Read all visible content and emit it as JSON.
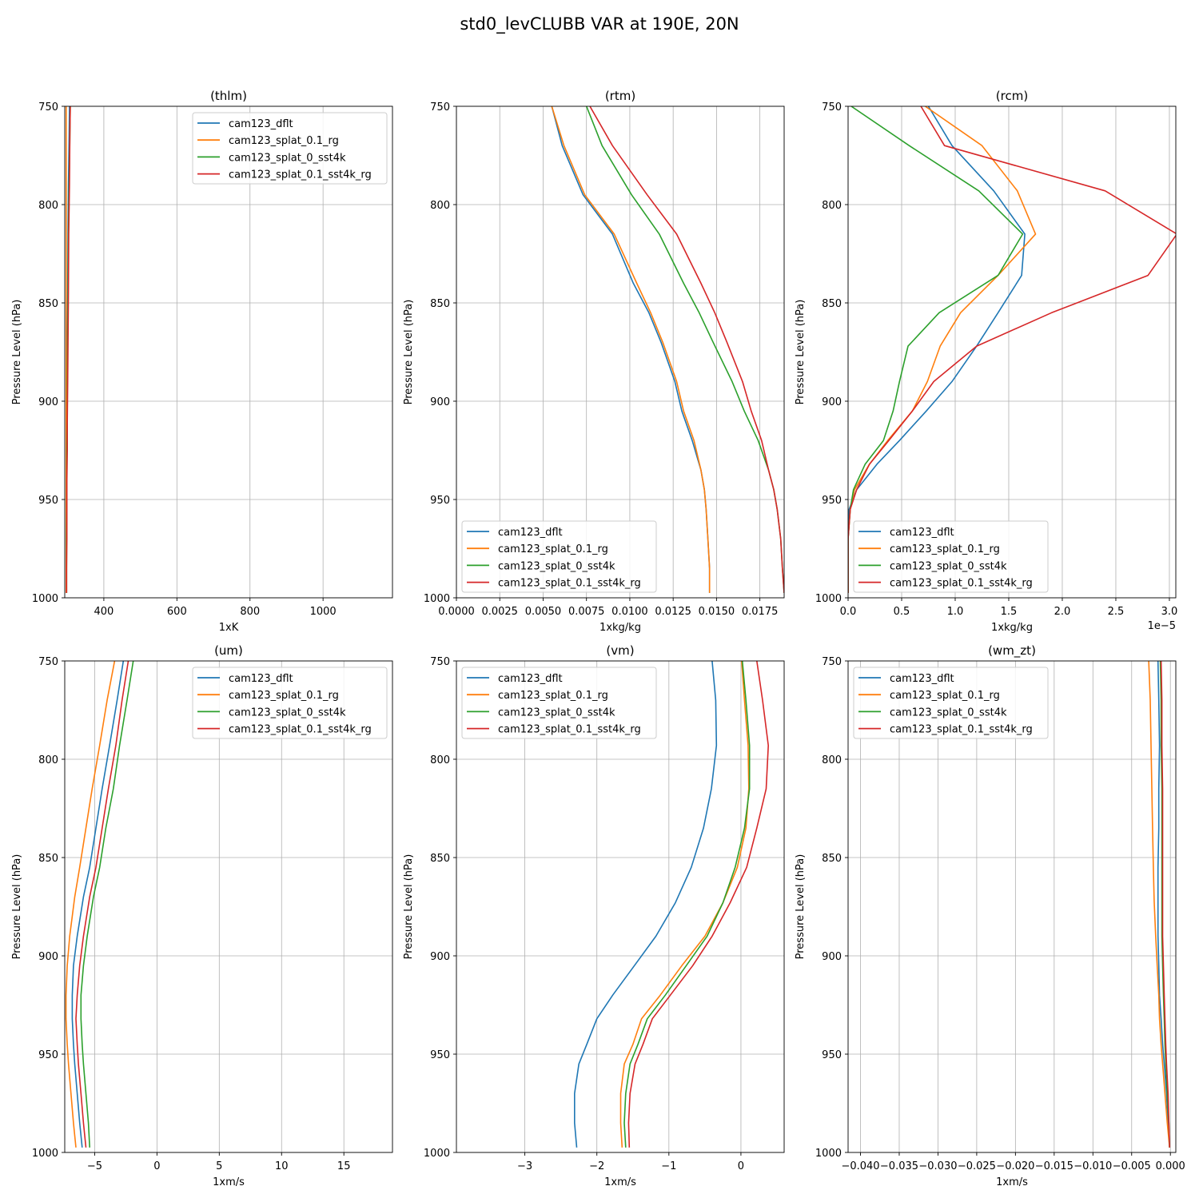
{
  "figure": {
    "title": "std0_levCLUBB VAR at 190E, 20N",
    "legend_entries": [
      "cam123_dflt",
      "cam123_splat_0.1_rg",
      "cam123_splat_0_sst4k",
      "cam123_splat_0.1_sst4k_rg"
    ],
    "colors": {
      "cam123_dflt": "#1f77b4",
      "cam123_splat_0.1_rg": "#ff7f0e",
      "cam123_splat_0_sst4k": "#2ca02c",
      "cam123_splat_0.1_sst4k_rg": "#d62728",
      "grid": "#b0b0b0"
    }
  },
  "chart_data": [
    {
      "type": "line",
      "title": "(thlm)",
      "xlabel": "1xK",
      "ylabel": "Pressure Level (hPa)",
      "xlim": [
        293,
        1190
      ],
      "ylim": [
        1000,
        750
      ],
      "y_inverted": true,
      "xticks": [
        400,
        600,
        800,
        1000
      ],
      "xtick_labels": [
        "400",
        "600",
        "800",
        "1000"
      ],
      "yticks": [
        750,
        800,
        850,
        900,
        950,
        1000
      ],
      "ytick_labels": [
        "750",
        "800",
        "850",
        "900",
        "950",
        "1000"
      ],
      "grid": true,
      "legend_loc": "upper right",
      "y": [
        997.5,
        985,
        970,
        955,
        940,
        925,
        910,
        890,
        870,
        845,
        815,
        790,
        765,
        750
      ],
      "series": [
        {
          "name": "cam123_dflt",
          "x": [
            297,
            297,
            297,
            298,
            298,
            298,
            299,
            299,
            300,
            301,
            302,
            303,
            305,
            306
          ]
        },
        {
          "name": "cam123_splat_0.1_rg",
          "x": [
            297,
            297,
            297,
            297,
            297,
            297,
            297,
            297,
            297,
            297,
            297,
            297,
            297,
            297
          ]
        },
        {
          "name": "cam123_splat_0_sst4k",
          "x": [
            298,
            298,
            298,
            299,
            299,
            299,
            300,
            300,
            301,
            302,
            303,
            305,
            307,
            308
          ]
        },
        {
          "name": "cam123_splat_0.1_sst4k_rg",
          "x": [
            298,
            298,
            299,
            299,
            299,
            300,
            300,
            301,
            302,
            303,
            304,
            306,
            307,
            308
          ]
        }
      ]
    },
    {
      "type": "line",
      "title": "(rtm)",
      "xlabel": "1xkg/kg",
      "ylabel": "Pressure Level (hPa)",
      "xlim": [
        0,
        0.0189
      ],
      "ylim": [
        1000,
        750
      ],
      "y_inverted": true,
      "xticks": [
        0,
        0.0025,
        0.005,
        0.0075,
        0.01,
        0.0125,
        0.015,
        0.0175
      ],
      "xtick_labels": [
        "0.0000",
        "0.0025",
        "0.0050",
        "0.0075",
        "0.0100",
        "0.0125",
        "0.0150",
        "0.0175"
      ],
      "yticks": [
        750,
        800,
        850,
        900,
        950,
        1000
      ],
      "ytick_labels": [
        "750",
        "800",
        "850",
        "900",
        "950",
        "1000"
      ],
      "grid": true,
      "legend_loc": "lower left",
      "y": [
        997.5,
        985,
        970,
        955,
        945,
        935,
        920,
        905,
        890,
        870,
        855,
        840,
        815,
        795,
        770,
        750
      ],
      "series": [
        {
          "name": "cam123_dflt",
          "x": [
            0.0146,
            0.0146,
            0.0145,
            0.0144,
            0.0143,
            0.0141,
            0.0136,
            0.013,
            0.0126,
            0.0118,
            0.0111,
            0.0102,
            0.009,
            0.0073,
            0.0061,
            0.0055
          ]
        },
        {
          "name": "cam123_splat_0.1_rg",
          "x": [
            0.0146,
            0.0146,
            0.0145,
            0.0144,
            0.0143,
            0.0141,
            0.0137,
            0.0131,
            0.0127,
            0.0119,
            0.0112,
            0.0104,
            0.0091,
            0.0074,
            0.0062,
            0.0055
          ]
        },
        {
          "name": "cam123_splat_0_sst4k",
          "x": [
            0.0189,
            0.0188,
            0.0187,
            0.0185,
            0.0183,
            0.018,
            0.0174,
            0.0166,
            0.0159,
            0.0148,
            0.014,
            0.0131,
            0.0117,
            0.0101,
            0.0084,
            0.0075
          ]
        },
        {
          "name": "cam123_splat_0.1_sst4k_rg",
          "x": [
            0.0189,
            0.0188,
            0.0187,
            0.0185,
            0.0183,
            0.018,
            0.0176,
            0.017,
            0.0165,
            0.0156,
            0.0149,
            0.0141,
            0.0127,
            0.011,
            0.009,
            0.0077
          ]
        }
      ]
    },
    {
      "type": "line",
      "title": "(rcm)",
      "xlabel": "1xkg/kg",
      "x_offset_label": "1e−5",
      "ylabel": "Pressure Level (hPa)",
      "xlim": [
        0,
        3.06
      ],
      "x_scale": "1e-5",
      "ylim": [
        1000,
        750
      ],
      "y_inverted": true,
      "xticks": [
        0,
        0.5,
        1.0,
        1.5,
        2.0,
        2.5,
        3.0
      ],
      "xtick_labels": [
        "0.0",
        "0.5",
        "1.0",
        "1.5",
        "2.0",
        "2.5",
        "3.0"
      ],
      "yticks": [
        750,
        800,
        850,
        900,
        950,
        1000
      ],
      "ytick_labels": [
        "750",
        "800",
        "850",
        "900",
        "950",
        "1000"
      ],
      "grid": true,
      "legend_loc": "lower left",
      "y": [
        997.5,
        985,
        970,
        955,
        945,
        932,
        920,
        905,
        890,
        872,
        855,
        836,
        815,
        793,
        770,
        750
      ],
      "series": [
        {
          "name": "cam123_dflt",
          "x": [
            0,
            0,
            0,
            0.01,
            0.08,
            0.27,
            0.48,
            0.73,
            0.97,
            1.2,
            1.4,
            1.62,
            1.65,
            1.36,
            0.97,
            0.75
          ]
        },
        {
          "name": "cam123_splat_0.1_rg",
          "x": [
            0,
            0,
            0,
            0.02,
            0.06,
            0.2,
            0.37,
            0.6,
            0.74,
            0.86,
            1.05,
            1.4,
            1.75,
            1.58,
            1.25,
            0.72
          ]
        },
        {
          "name": "cam123_splat_0_sst4k",
          "x": [
            0,
            0,
            0,
            0.02,
            0.05,
            0.16,
            0.33,
            0.42,
            0.48,
            0.56,
            0.85,
            1.4,
            1.63,
            1.22,
            0.57,
            0.03
          ]
        },
        {
          "name": "cam123_splat_0.1_sst4k_rg",
          "x": [
            0,
            0,
            0,
            0.02,
            0.08,
            0.2,
            0.38,
            0.6,
            0.8,
            1.2,
            1.9,
            2.8,
            3.07,
            2.4,
            0.9,
            0.68
          ]
        }
      ]
    },
    {
      "type": "line",
      "title": "(um)",
      "xlabel": "1xm/s",
      "ylabel": "Pressure Level (hPa)",
      "xlim": [
        -7.4,
        18.9
      ],
      "ylim": [
        1000,
        750
      ],
      "y_inverted": true,
      "xticks": [
        -5,
        0,
        5,
        10,
        15
      ],
      "xtick_labels": [
        "−5",
        "0",
        "5",
        "10",
        "15"
      ],
      "yticks": [
        750,
        800,
        850,
        900,
        950,
        1000
      ],
      "ytick_labels": [
        "750",
        "800",
        "850",
        "900",
        "950",
        "1000"
      ],
      "grid": true,
      "legend_loc": "upper right",
      "y": [
        997.5,
        985,
        970,
        955,
        945,
        932,
        920,
        905,
        890,
        870,
        855,
        835,
        815,
        793,
        770,
        750
      ],
      "series": [
        {
          "name": "cam123_dflt",
          "x": [
            -6.0,
            -6.2,
            -6.4,
            -6.6,
            -6.7,
            -6.8,
            -6.8,
            -6.7,
            -6.4,
            -5.9,
            -5.4,
            -4.9,
            -4.4,
            -3.8,
            -3.2,
            -2.7
          ]
        },
        {
          "name": "cam123_splat_0.1_rg",
          "x": [
            -6.5,
            -6.7,
            -6.9,
            -7.1,
            -7.2,
            -7.3,
            -7.3,
            -7.2,
            -7.0,
            -6.6,
            -6.2,
            -5.7,
            -5.2,
            -4.6,
            -4.0,
            -3.4
          ]
        },
        {
          "name": "cam123_splat_0_sst4k",
          "x": [
            -5.4,
            -5.5,
            -5.7,
            -5.9,
            -6.0,
            -6.1,
            -6.1,
            -5.9,
            -5.6,
            -5.1,
            -4.6,
            -4.1,
            -3.5,
            -3.0,
            -2.4,
            -1.9
          ]
        },
        {
          "name": "cam123_splat_0.1_sst4k_rg",
          "x": [
            -5.7,
            -5.9,
            -6.1,
            -6.3,
            -6.4,
            -6.5,
            -6.4,
            -6.2,
            -5.9,
            -5.4,
            -4.9,
            -4.4,
            -3.9,
            -3.3,
            -2.8,
            -2.3
          ]
        }
      ]
    },
    {
      "type": "line",
      "title": "(vm)",
      "xlabel": "1xm/s",
      "ylabel": "Pressure Level (hPa)",
      "xlim": [
        -3.95,
        0.6
      ],
      "ylim": [
        1000,
        750
      ],
      "y_inverted": true,
      "xticks": [
        -3,
        -2,
        -1,
        0
      ],
      "xtick_labels": [
        "−3",
        "−2",
        "−1",
        "0"
      ],
      "yticks": [
        750,
        800,
        850,
        900,
        950,
        1000
      ],
      "ytick_labels": [
        "750",
        "800",
        "850",
        "900",
        "950",
        "1000"
      ],
      "grid": true,
      "legend_loc": "upper left",
      "y": [
        997.5,
        985,
        970,
        955,
        945,
        932,
        920,
        905,
        890,
        873,
        855,
        835,
        815,
        793,
        770,
        750
      ],
      "series": [
        {
          "name": "cam123_dflt",
          "x": [
            -2.28,
            -2.31,
            -2.31,
            -2.25,
            -2.14,
            -2.0,
            -1.78,
            -1.48,
            -1.18,
            -0.91,
            -0.69,
            -0.52,
            -0.41,
            -0.34,
            -0.35,
            -0.4
          ]
        },
        {
          "name": "cam123_splat_0.1_rg",
          "x": [
            -1.65,
            -1.67,
            -1.67,
            -1.62,
            -1.5,
            -1.38,
            -1.12,
            -0.82,
            -0.5,
            -0.25,
            -0.05,
            0.07,
            0.11,
            0.1,
            0.05,
            0.01
          ]
        },
        {
          "name": "cam123_splat_0_sst4k",
          "x": [
            -1.6,
            -1.62,
            -1.6,
            -1.54,
            -1.43,
            -1.3,
            -1.05,
            -0.76,
            -0.47,
            -0.25,
            -0.08,
            0.05,
            0.12,
            0.12,
            0.07,
            0.02
          ]
        },
        {
          "name": "cam123_splat_0.1_sst4k_rg",
          "x": [
            -1.55,
            -1.56,
            -1.54,
            -1.47,
            -1.36,
            -1.23,
            -0.98,
            -0.67,
            -0.4,
            -0.15,
            0.08,
            0.22,
            0.35,
            0.38,
            0.3,
            0.22
          ]
        }
      ]
    },
    {
      "type": "line",
      "title": "(wm_zt)",
      "xlabel": "1xm/s",
      "ylabel": "Pressure Level (hPa)",
      "xlim": [
        -0.0416,
        0.0007
      ],
      "ylim": [
        1000,
        750
      ],
      "y_inverted": true,
      "xticks": [
        -0.04,
        -0.035,
        -0.03,
        -0.025,
        -0.02,
        -0.015,
        -0.01,
        -0.005,
        0
      ],
      "xtick_labels": [
        "−0.040",
        "−0.035",
        "−0.030",
        "−0.025",
        "−0.020",
        "−0.015",
        "−0.010",
        "−0.005",
        "0.000"
      ],
      "yticks": [
        750,
        800,
        850,
        900,
        950,
        1000
      ],
      "ytick_labels": [
        "750",
        "800",
        "850",
        "900",
        "950",
        "1000"
      ],
      "grid": true,
      "legend_loc": "upper left",
      "y": [
        997.5,
        985,
        970,
        955,
        945,
        932,
        920,
        905,
        890,
        872,
        855,
        835,
        815,
        793,
        770,
        750
      ],
      "series": [
        {
          "name": "cam123_dflt",
          "x": [
            -0.0001,
            -0.0003,
            -0.0005,
            -0.0008,
            -0.001,
            -0.0012,
            -0.0014,
            -0.0015,
            -0.0016,
            -0.0016,
            -0.0016,
            -0.0015,
            -0.0015,
            -0.0014,
            -0.0015,
            -0.0016
          ]
        },
        {
          "name": "cam123_splat_0.1_rg",
          "x": [
            -0.0001,
            -0.0004,
            -0.0007,
            -0.001,
            -0.0012,
            -0.0014,
            -0.0015,
            -0.0017,
            -0.0019,
            -0.0021,
            -0.0022,
            -0.0023,
            -0.0024,
            -0.0025,
            -0.0026,
            -0.0028
          ]
        },
        {
          "name": "cam123_splat_0_sst4k",
          "x": [
            -0.0001,
            -0.0002,
            -0.0004,
            -0.0006,
            -0.0007,
            -0.0008,
            -0.0009,
            -0.001,
            -0.0011,
            -0.0011,
            -0.0011,
            -0.0011,
            -0.0011,
            -0.0012,
            -0.0012,
            -0.0013
          ]
        },
        {
          "name": "cam123_splat_0.1_sst4k_rg",
          "x": [
            -0.0001,
            -0.0002,
            -0.0003,
            -0.0005,
            -0.0006,
            -0.0007,
            -0.0008,
            -0.0009,
            -0.001,
            -0.001,
            -0.001,
            -0.001,
            -0.001,
            -0.0011,
            -0.0011,
            -0.0012
          ]
        }
      ]
    }
  ]
}
